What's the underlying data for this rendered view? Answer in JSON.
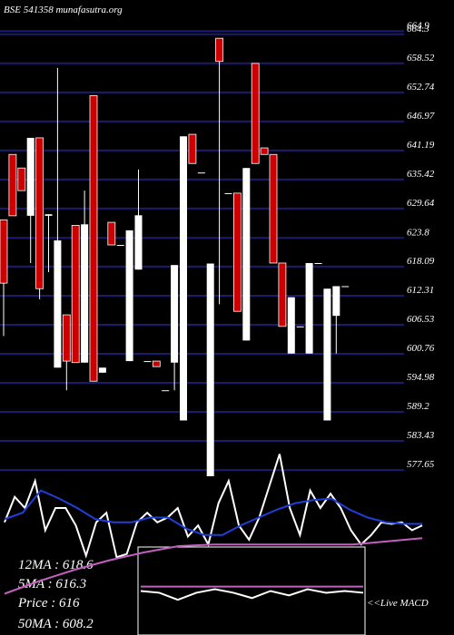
{
  "chart_data": [
    {
      "type": "candlestick",
      "title": "BSE 541358 munafasutra.org",
      "up_color": "#ffffff",
      "down_color": "#cc0000",
      "grid": true,
      "grid_color": "#1c1c6e",
      "ylim": [
        576.4,
        665.7
      ],
      "yticks": [
        664.9,
        664.3,
        658.52,
        652.74,
        646.97,
        641.19,
        635.42,
        629.64,
        623.8,
        618.09,
        612.31,
        606.53,
        600.76,
        594.98,
        589.2,
        583.43,
        577.65
      ],
      "open": [
        627.4,
        640.4,
        637.7,
        628.2,
        643.7,
        628.2,
        598,
        608.5,
        626.3,
        599,
        652.1,
        597,
        626.9,
        622.4,
        599.3,
        617.5,
        599.3,
        599.3,
        593.5,
        599,
        587.5,
        644.4,
        636.8,
        576.4,
        663.5,
        632.7,
        632.7,
        603.4,
        658.5,
        641.7,
        640.4,
        618.8,
        600.8,
        606.2,
        600.8,
        618.8,
        587.5,
        608.3,
        614.2
      ],
      "high": [
        627.4,
        640.4,
        637.7,
        643.7,
        643.7,
        628.5,
        657.6,
        608.5,
        626.3,
        633.2,
        652.1,
        598,
        626.9,
        622.4,
        625.3,
        637.4,
        599.3,
        599.3,
        593.5,
        618.4,
        644,
        644.4,
        636.8,
        618.7,
        663.5,
        632.7,
        632.7,
        637.7,
        658.5,
        641.7,
        640.4,
        618.8,
        612,
        606.2,
        618.8,
        618.8,
        613.7,
        614.2,
        614.2
      ],
      "low": [
        604.3,
        628.2,
        633.2,
        618.8,
        611.6,
        617,
        598,
        593.5,
        599,
        599,
        595.3,
        597,
        622.4,
        622.4,
        599.3,
        617.5,
        599.3,
        598.2,
        593.5,
        593.5,
        587.5,
        638.6,
        636.8,
        576.4,
        610.6,
        632.7,
        609.2,
        603.4,
        638.6,
        640.4,
        618.8,
        606.2,
        600.8,
        606.2,
        600.8,
        618.8,
        587.5,
        600.8,
        614.2
      ],
      "close": [
        614.8,
        628.2,
        633.2,
        643.7,
        613.7,
        628.5,
        623.3,
        599.3,
        599,
        626.5,
        595.3,
        598,
        622.4,
        622.4,
        625.3,
        628.3,
        599.3,
        598.2,
        593.5,
        618.4,
        644,
        638.6,
        636.8,
        618.7,
        658.9,
        632.7,
        609.2,
        637.7,
        638.6,
        640.4,
        618.8,
        606.2,
        612,
        606.2,
        618.8,
        618.8,
        613.7,
        614.2,
        614.2
      ]
    },
    {
      "type": "line",
      "ylim": [
        0,
        100
      ],
      "series": [
        {
          "color": "#ffffff",
          "values": [
            71,
            87,
            80,
            97,
            66,
            80,
            80,
            69,
            50,
            71,
            77,
            49,
            51,
            71,
            77,
            71,
            74,
            80,
            62,
            69,
            57,
            83,
            97,
            69,
            60,
            74,
            94,
            114,
            80,
            63,
            91,
            80,
            89,
            80,
            66,
            57,
            63,
            71,
            70,
            71,
            66,
            69
          ]
        },
        {
          "color": "#1f3fd8",
          "values": [
            73,
            77,
            91,
            86,
            80,
            73,
            71,
            71,
            74,
            74,
            67,
            63,
            63,
            69,
            74,
            79,
            83,
            85,
            86,
            79,
            74,
            71,
            70,
            70
          ]
        },
        {
          "color": "#c060c0",
          "values": [
            26,
            34,
            41,
            47,
            52,
            56,
            57,
            57,
            57,
            57,
            57,
            59,
            61
          ]
        }
      ]
    },
    {
      "type": "line",
      "title": "<<Live MACD",
      "ylim": [
        0,
        100
      ],
      "series": [
        {
          "color": "#c060c0",
          "values": [
            55,
            55,
            55,
            55,
            55,
            55,
            55
          ]
        },
        {
          "color": "#ffffff",
          "values": [
            50,
            48,
            40,
            48,
            52,
            48,
            42,
            50,
            45,
            52,
            48,
            50,
            48
          ]
        }
      ]
    }
  ],
  "legend": {
    "ma12": "12MA : 618.6",
    "ma5": "5MA : 616.3",
    "price": "Price : 616",
    "ma50": "50MA : 608.2"
  }
}
